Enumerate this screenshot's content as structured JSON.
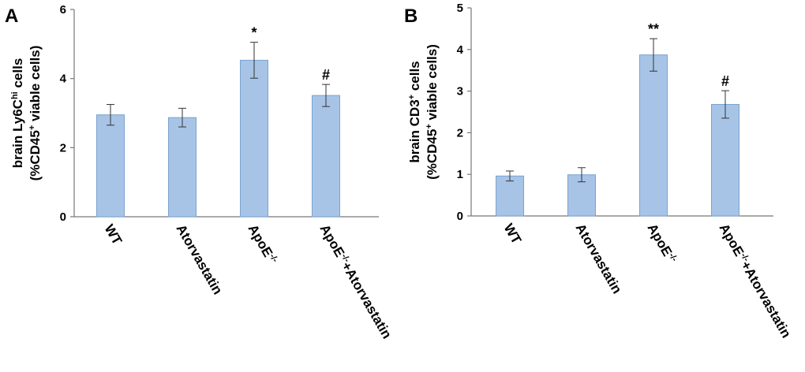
{
  "chart_data": [
    {
      "panel": "A",
      "type": "bar",
      "ylabel_line1": "brain Ly6C",
      "ylabel_line1_sup": "hi",
      "ylabel_line1_end": " cells",
      "ylabel_line2_start": "(%CD45",
      "ylabel_line2_sup": "+",
      "ylabel_line2_end": " viable cells)",
      "categories": [
        {
          "base": "WT",
          "sup": "",
          "tail": ""
        },
        {
          "base": "Atorvastatin",
          "sup": "",
          "tail": ""
        },
        {
          "base": "ApoE",
          "sup": "-/-",
          "tail": ""
        },
        {
          "base": "ApoE",
          "sup": "-/-",
          "tail": "+Atorvastatin"
        }
      ],
      "values": [
        2.95,
        2.87,
        4.53,
        3.51
      ],
      "errors": [
        0.3,
        0.27,
        0.52,
        0.32
      ],
      "annotations": [
        "",
        "",
        "*",
        "#"
      ],
      "ylim": [
        0,
        6
      ],
      "yticks": [
        "0",
        "2",
        "4",
        "6"
      ],
      "bar_color": "#a7c4e7"
    },
    {
      "panel": "B",
      "type": "bar",
      "ylabel_line1": "brain CD3",
      "ylabel_line1_sup": "+",
      "ylabel_line1_end": " cells",
      "ylabel_line2_start": "(%CD45",
      "ylabel_line2_sup": "+",
      "ylabel_line2_end": " viable cells)",
      "categories": [
        {
          "base": "WT",
          "sup": "",
          "tail": ""
        },
        {
          "base": "Atorvastatin",
          "sup": "",
          "tail": ""
        },
        {
          "base": "ApoE",
          "sup": "-/-",
          "tail": ""
        },
        {
          "base": "ApoE",
          "sup": "-/-",
          "tail": "+Atorvastatin"
        }
      ],
      "values": [
        0.96,
        0.99,
        3.87,
        2.68
      ],
      "errors": [
        0.12,
        0.17,
        0.39,
        0.33
      ],
      "annotations": [
        "",
        "",
        "**",
        "#"
      ],
      "ylim": [
        0,
        5
      ],
      "yticks": [
        "0",
        "1",
        "2",
        "3",
        "4",
        "5"
      ],
      "bar_color": "#a7c4e7"
    }
  ]
}
